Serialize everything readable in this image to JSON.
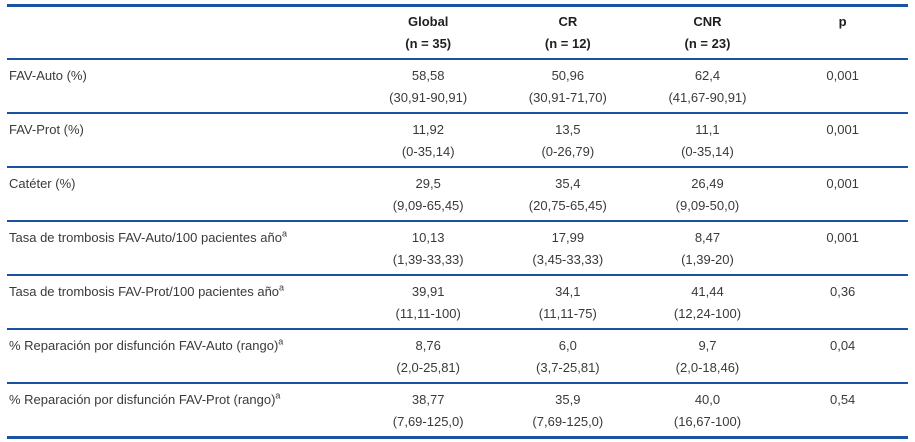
{
  "accent_color": "#1a53a1",
  "table": {
    "columns": [
      {
        "label": "",
        "sub": ""
      },
      {
        "label": "Global",
        "sub": "(n = 35)"
      },
      {
        "label": "CR",
        "sub": "(n = 12)"
      },
      {
        "label": "CNR",
        "sub": "(n = 23)"
      },
      {
        "label": "p",
        "sub": ""
      }
    ],
    "rows": [
      {
        "label": "FAV-Auto (%)",
        "sup": "",
        "global": {
          "value": "58,58",
          "range": "(30,91-90,91)"
        },
        "cr": {
          "value": "50,96",
          "range": "(30,91-71,70)"
        },
        "cnr": {
          "value": "62,4",
          "range": "(41,67-90,91)"
        },
        "p": "0,001"
      },
      {
        "label": "FAV-Prot (%)",
        "sup": "",
        "global": {
          "value": "11,92",
          "range": "(0-35,14)"
        },
        "cr": {
          "value": "13,5",
          "range": "(0-26,79)"
        },
        "cnr": {
          "value": "11,1",
          "range": "(0-35,14)"
        },
        "p": "0,001"
      },
      {
        "label": "Catéter (%)",
        "sup": "",
        "global": {
          "value": "29,5",
          "range": "(9,09-65,45)"
        },
        "cr": {
          "value": "35,4",
          "range": "(20,75-65,45)"
        },
        "cnr": {
          "value": "26,49",
          "range": "(9,09-50,0)"
        },
        "p": "0,001"
      },
      {
        "label": "Tasa de trombosis FAV-Auto/100 pacientes año",
        "sup": "a",
        "global": {
          "value": "10,13",
          "range": "(1,39-33,33)"
        },
        "cr": {
          "value": "17,99",
          "range": "(3,45-33,33)"
        },
        "cnr": {
          "value": "8,47",
          "range": "(1,39-20)"
        },
        "p": "0,001"
      },
      {
        "label": "Tasa de trombosis FAV-Prot/100 pacientes año",
        "sup": "a",
        "global": {
          "value": "39,91",
          "range": "(11,11-100)"
        },
        "cr": {
          "value": "34,1",
          "range": "(11,11-75)"
        },
        "cnr": {
          "value": "41,44",
          "range": "(12,24-100)"
        },
        "p": "0,36"
      },
      {
        "label": "% Reparación por disfunción FAV-Auto (rango)",
        "sup": "a",
        "global": {
          "value": "8,76",
          "range": "(2,0-25,81)"
        },
        "cr": {
          "value": "6,0",
          "range": "(3,7-25,81)"
        },
        "cnr": {
          "value": "9,7",
          "range": "(2,0-18,46)"
        },
        "p": "0,04"
      },
      {
        "label": "% Reparación por disfunción FAV-Prot (rango)",
        "sup": "a",
        "global": {
          "value": "38,77",
          "range": "(7,69-125,0)"
        },
        "cr": {
          "value": "35,9",
          "range": "(7,69-125,0)"
        },
        "cnr": {
          "value": "40,0",
          "range": "(16,67-100)"
        },
        "p": "0,54"
      }
    ]
  }
}
